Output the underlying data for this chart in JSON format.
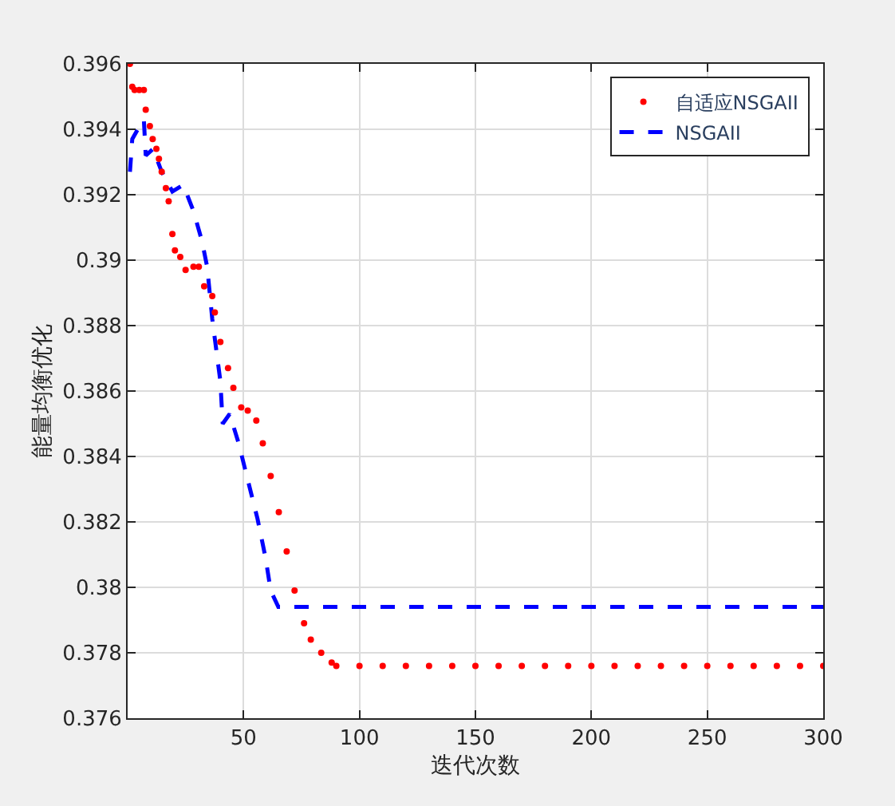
{
  "chart_data": {
    "type": "line",
    "xlabel": "迭代次数",
    "ylabel": "能量均衡优化",
    "xlim": [
      0,
      300
    ],
    "ylim": [
      0.376,
      0.396
    ],
    "xticks": [
      50,
      100,
      150,
      200,
      250,
      300
    ],
    "yticks": [
      0.376,
      0.378,
      0.38,
      0.382,
      0.384,
      0.386,
      0.388,
      0.39,
      0.392,
      0.394,
      0.396
    ],
    "grid": true,
    "legend": "top right",
    "series": [
      {
        "name": "自适应NSGAII",
        "type": "scatter",
        "marker": "circle",
        "color": "#ff0000",
        "x": [
          1,
          2,
          3,
          5,
          7,
          7.8,
          9.6,
          10.8,
          12.4,
          13.5,
          14.7,
          16.5,
          17.7,
          19.3,
          20.4,
          22.7,
          25,
          28.4,
          30.7,
          33,
          36.5,
          37.6,
          40,
          43.3,
          45.6,
          49,
          51.8,
          55.5,
          58.3,
          61.7,
          65.2,
          68.6,
          72,
          76.1,
          79,
          83.5,
          88,
          90,
          100,
          110,
          120,
          130,
          140,
          150,
          160,
          170,
          180,
          190,
          200,
          210,
          220,
          230,
          240,
          250,
          260,
          270,
          280,
          290,
          300
        ],
        "values": [
          0.396,
          0.3953,
          0.3952,
          0.3952,
          0.3952,
          0.3946,
          0.3941,
          0.3937,
          0.3934,
          0.3931,
          0.3927,
          0.3922,
          0.3918,
          0.3908,
          0.3903,
          0.3901,
          0.3897,
          0.3898,
          0.3898,
          0.3892,
          0.3889,
          0.3884,
          0.3875,
          0.3867,
          0.3861,
          0.3855,
          0.3854,
          0.3851,
          0.3844,
          0.3834,
          0.3823,
          0.3811,
          0.3799,
          0.3789,
          0.3784,
          0.378,
          0.3777,
          0.3776,
          0.3776,
          0.3776,
          0.3776,
          0.3776,
          0.3776,
          0.3776,
          0.3776,
          0.3776,
          0.3776,
          0.3776,
          0.3776,
          0.3776,
          0.3776,
          0.3776,
          0.3776,
          0.3776,
          0.3776,
          0.3776,
          0.3776,
          0.3776,
          0.3776
        ]
      },
      {
        "name": "NSGAII",
        "marker": "none",
        "line_style": "dashed",
        "color": "#0000ff",
        "x": [
          1,
          2,
          4.4,
          7,
          7.8,
          11,
          14.7,
          19.3,
          24,
          28.4,
          32,
          34.3,
          36.5,
          40,
          41,
          44,
          47.9,
          51.4,
          56,
          59.5,
          61.7,
          65,
          300
        ],
        "values": [
          0.3927,
          0.3937,
          0.394,
          0.3943,
          0.3932,
          0.3934,
          0.3927,
          0.3921,
          0.3923,
          0.3915,
          0.3906,
          0.3898,
          0.3882,
          0.3863,
          0.385,
          0.3853,
          0.3844,
          0.3834,
          0.3821,
          0.3809,
          0.3799,
          0.3794,
          0.3794
        ]
      }
    ]
  }
}
